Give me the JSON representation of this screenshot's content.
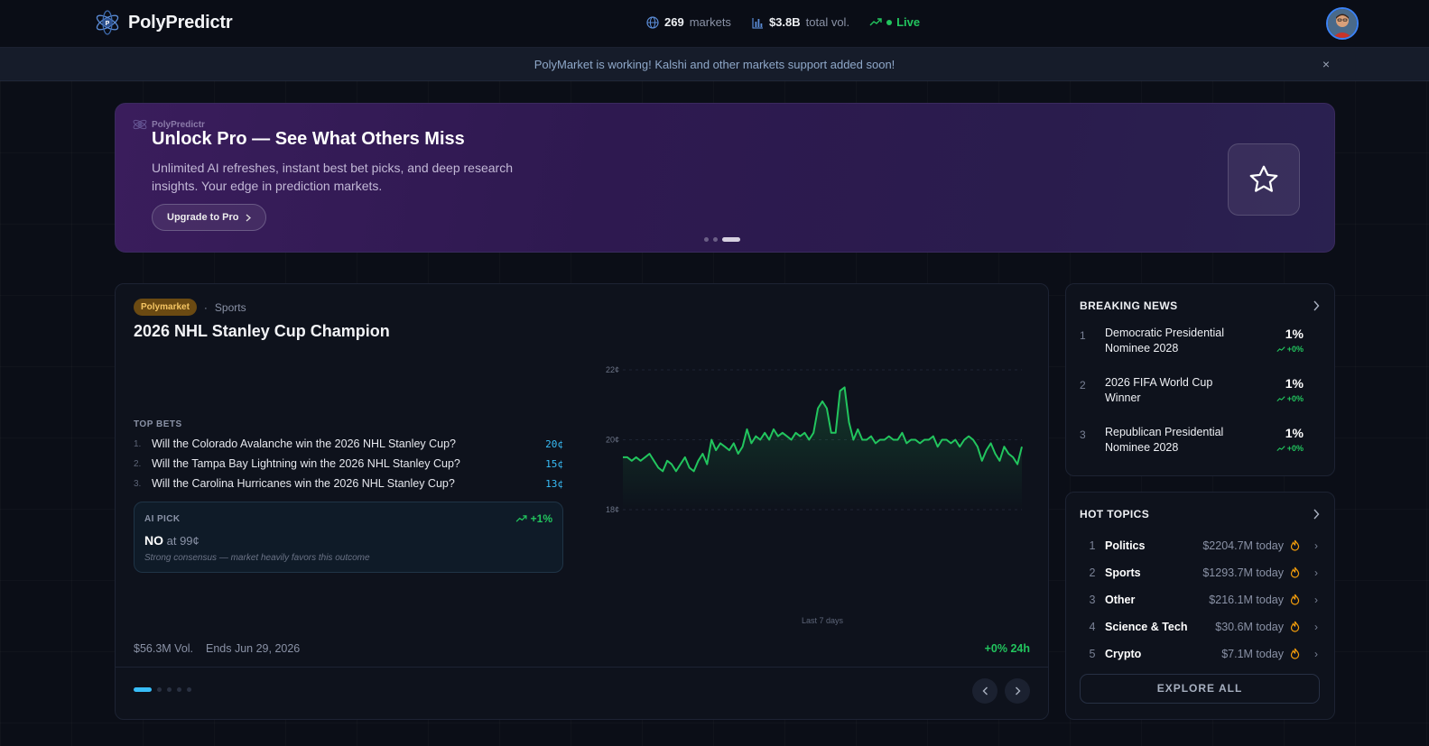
{
  "app": {
    "name": "PolyPredictr",
    "stats": {
      "markets_count": "269",
      "markets_label": "markets",
      "volume_value": "$3.8B",
      "volume_label": "total vol.",
      "live_label": "Live"
    }
  },
  "notice": {
    "text": "PolyMarket is working! Kalshi and other markets support added soon!",
    "close": "×"
  },
  "promo": {
    "brand": "PolyPredictr",
    "title": "Unlock Pro — See What Others Miss",
    "description": "Unlimited AI refreshes, instant best bet picks, and deep research insights. Your edge in prediction markets.",
    "button_label": "Upgrade to Pro"
  },
  "market": {
    "source_badge": "Polymarket",
    "category": "Sports",
    "title": "2026 NHL Stanley Cup Champion",
    "top_bets_label": "TOP BETS",
    "top_bets": [
      {
        "n": "1.",
        "question": "Will the Colorado Avalanche win the 2026 NHL Stanley Cup?",
        "price": "20¢"
      },
      {
        "n": "2.",
        "question": "Will the Tampa Bay Lightning win the 2026 NHL Stanley Cup?",
        "price": "15¢"
      },
      {
        "n": "3.",
        "question": "Will the Carolina Hurricanes win the 2026 NHL Stanley Cup?",
        "price": "13¢"
      }
    ],
    "ai_pick": {
      "label": "AI PICK",
      "change": "+1%",
      "pick": "NO",
      "pick_price": "at 99¢",
      "note": "Strong consensus — market heavily favors this outcome"
    },
    "volume": "$56.3M Vol.",
    "ends": "Ends Jun 29, 2026",
    "change_24h": "+0% 24h"
  },
  "chart_data": {
    "type": "area",
    "xlabel": "Last 7 days",
    "ylabel": "",
    "yticks": [
      "22¢",
      "20¢",
      "18¢"
    ],
    "ylim": [
      18,
      22
    ],
    "color": "#22c55e",
    "values": [
      19.5,
      19.5,
      19.4,
      19.5,
      19.4,
      19.5,
      19.6,
      19.4,
      19.2,
      19.1,
      19.4,
      19.3,
      19.1,
      19.3,
      19.5,
      19.2,
      19.1,
      19.4,
      19.6,
      19.3,
      20.0,
      19.7,
      19.9,
      19.8,
      19.7,
      19.9,
      19.6,
      19.8,
      20.3,
      19.9,
      20.1,
      20.0,
      20.2,
      20.0,
      20.3,
      20.1,
      20.2,
      20.1,
      20.0,
      20.2,
      20.1,
      20.2,
      20.0,
      20.2,
      20.9,
      21.1,
      20.9,
      20.2,
      20.2,
      21.4,
      21.5,
      20.5,
      20.0,
      20.3,
      20.0,
      20.0,
      20.1,
      19.9,
      20.0,
      20.0,
      20.1,
      20.0,
      20.0,
      20.2,
      19.9,
      20.0,
      20.0,
      19.9,
      20.0,
      20.0,
      20.1,
      19.8,
      20.0,
      20.0,
      19.9,
      20.0,
      19.8,
      20.0,
      20.1,
      20.0,
      19.8,
      19.4,
      19.7,
      19.9,
      19.6,
      19.4,
      19.8,
      19.6,
      19.5,
      19.3,
      19.8
    ]
  },
  "breaking_news": {
    "title": "BREAKING NEWS",
    "items": [
      {
        "n": "1",
        "title": "Democratic Presidential Nominee 2028",
        "pct": "1%",
        "change": "+0%"
      },
      {
        "n": "2",
        "title": "2026 FIFA World Cup Winner",
        "pct": "1%",
        "change": "+0%"
      },
      {
        "n": "3",
        "title": "Republican Presidential Nominee 2028",
        "pct": "1%",
        "change": "+0%"
      }
    ]
  },
  "hot_topics": {
    "title": "HOT TOPICS",
    "items": [
      {
        "n": "1",
        "name": "Politics",
        "volume": "$2204.7M today"
      },
      {
        "n": "2",
        "name": "Sports",
        "volume": "$1293.7M today"
      },
      {
        "n": "3",
        "name": "Other",
        "volume": "$216.1M today"
      },
      {
        "n": "4",
        "name": "Science & Tech",
        "volume": "$30.6M today"
      },
      {
        "n": "5",
        "name": "Crypto",
        "volume": "$7.1M today"
      }
    ],
    "explore_label": "EXPLORE ALL"
  },
  "icons": {
    "logo": "atom-logo-icon",
    "markets": "globe-icon",
    "volume": "bar-chart-icon",
    "live": "trending-up-icon",
    "promo_star": "star-icon",
    "fire": "fire-icon"
  }
}
